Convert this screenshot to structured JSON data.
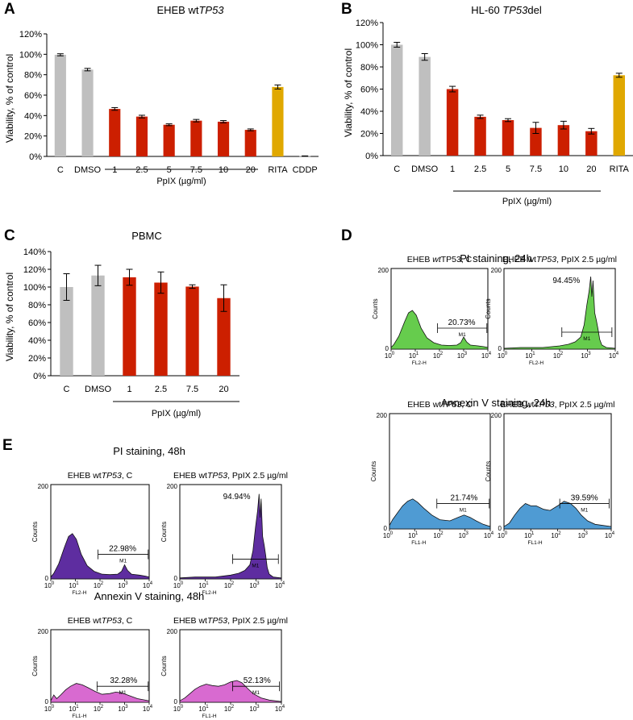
{
  "panel_letters": {
    "a": "A",
    "b": "B",
    "c": "C",
    "d": "D",
    "e": "E"
  },
  "chart_data": [
    {
      "id": "A",
      "type": "bar",
      "title_parts": [
        "EHEB wt",
        "TP53",
        ""
      ],
      "ylabel": "Viability, % of control",
      "ylim": [
        0,
        120
      ],
      "yticks": [
        0,
        20,
        40,
        60,
        80,
        100,
        120
      ],
      "ytick_suffix": "%",
      "categories": [
        "C",
        "DMSO",
        "1",
        "2.5",
        "5",
        "7.5",
        "10",
        "20",
        "RITA",
        "CDDP"
      ],
      "values": [
        99.5,
        85,
        46.5,
        39,
        31,
        35,
        34,
        26,
        68,
        0.3
      ],
      "errors": [
        1,
        1.2,
        1.3,
        1.3,
        0.9,
        1.2,
        1.1,
        0.9,
        2,
        0.2
      ],
      "groups": [
        "control",
        "control",
        "ppix",
        "ppix",
        "ppix",
        "ppix",
        "ppix",
        "ppix",
        "rita",
        "cddp"
      ],
      "group_label": "PpIX (µg/ml)"
    },
    {
      "id": "B",
      "type": "bar",
      "title_parts": [
        "HL-60 ",
        "TP53",
        "del"
      ],
      "ylabel": "Viability, % of control",
      "ylim": [
        0,
        120
      ],
      "yticks": [
        0,
        20,
        40,
        60,
        80,
        100,
        120
      ],
      "ytick_suffix": "%",
      "categories": [
        "C",
        "DMSO",
        "1",
        "2.5",
        "5",
        "7.5",
        "10",
        "20",
        "RITA"
      ],
      "values": [
        100,
        89,
        60,
        35,
        32,
        25,
        27.5,
        22,
        72.5
      ],
      "errors": [
        2.2,
        3,
        2.5,
        1.5,
        1.3,
        5,
        3.5,
        2.5,
        1.8
      ],
      "groups": [
        "control",
        "control",
        "ppix",
        "ppix",
        "ppix",
        "ppix",
        "ppix",
        "ppix",
        "rita"
      ],
      "group_label": "PpIX (µg/ml)"
    },
    {
      "id": "C",
      "type": "bar",
      "title_parts": [
        "PBMC",
        "",
        ""
      ],
      "ylabel": "Viability, % of control",
      "ylim": [
        0,
        140
      ],
      "yticks": [
        0,
        20,
        40,
        60,
        80,
        100,
        120,
        140
      ],
      "ytick_suffix": "%",
      "categories": [
        "C",
        "DMSO",
        "1",
        "2.5",
        "7.5",
        "20"
      ],
      "values": [
        100,
        113,
        111,
        105,
        100.5,
        87.5
      ],
      "errors": [
        15,
        11.5,
        9,
        12,
        2,
        15
      ],
      "groups": [
        "control",
        "control",
        "ppix",
        "ppix",
        "ppix",
        "ppix"
      ],
      "group_label": "PpIX (µg/ml)"
    }
  ],
  "colors": {
    "control": "#bfbfbf",
    "ppix": "#cc1f00",
    "rita": "#e0a800",
    "cddp": "#c2c2c2",
    "pi24": "#66cc4d",
    "annexin24": "#4f9bd3",
    "pi48": "#5e2da0",
    "annexin48": "#d86ad0"
  },
  "flow": {
    "ylabel": "Counts",
    "ymax_label": "200",
    "ymin_label": "0",
    "xtick_base": "10",
    "xtick_exps": [
      "0",
      "1",
      "2",
      "3",
      "4"
    ],
    "marker_label": "M1",
    "section_d": {
      "pi_title": "PI staining, 24h",
      "annexin_title": "Annexin V staining, 24h",
      "plots": [
        {
          "title_parts": [
            "EHEB ",
            "wt",
            "TP53, C"
          ],
          "italic": [
            false,
            true,
            false
          ],
          "percent": "20.73%",
          "xlabel": "FL2-H",
          "kind": "pi_control",
          "color": "pi24"
        },
        {
          "title_parts": [
            "EHEB wt",
            "TP53",
            ", PpIX 2.5 µg/ml"
          ],
          "italic": [
            false,
            true,
            false
          ],
          "percent": "94.45%",
          "xlabel": "FL2-H",
          "kind": "pi_treated",
          "color": "pi24"
        },
        {
          "title_parts": [
            "EHEB wt",
            "TP53",
            ", C"
          ],
          "italic": [
            false,
            true,
            false
          ],
          "percent": "21.74%",
          "xlabel": "FL1-H",
          "kind": "annexin_control",
          "color": "annexin24"
        },
        {
          "title_parts": [
            "EHEB wt",
            "TP53",
            ", PpIX 2.5 µg/ml"
          ],
          "italic": [
            false,
            true,
            false
          ],
          "percent": "39.59%",
          "xlabel": "FL1-H",
          "kind": "annexin_treated",
          "color": "annexin24"
        }
      ]
    },
    "section_e": {
      "pi_title": "PI staining, 48h",
      "annexin_title": "Annexin V staining, 48h",
      "plots": [
        {
          "title_parts": [
            "EHEB wt",
            "TP53",
            ", C"
          ],
          "italic": [
            false,
            true,
            false
          ],
          "percent": "22.98%",
          "xlabel": "FL2-H",
          "kind": "pi_control",
          "color": "pi48"
        },
        {
          "title_parts": [
            "EHEB wt",
            "TP53",
            ", PpIX 2.5 µg/ml"
          ],
          "italic": [
            false,
            true,
            false
          ],
          "percent": "94.94%",
          "xlabel": "FL2-H",
          "kind": "pi_treated",
          "color": "pi48"
        },
        {
          "title_parts": [
            "EHEB wt",
            "TP53",
            ", C"
          ],
          "italic": [
            false,
            true,
            false
          ],
          "percent": "32.28%",
          "xlabel": "FL1-H",
          "kind": "annexin_control48",
          "color": "annexin48"
        },
        {
          "title_parts": [
            "EHEB wt",
            "TP53",
            ", PpIX 2.5 µg/ml"
          ],
          "italic": [
            false,
            true,
            false
          ],
          "percent": "52.13%",
          "xlabel": "FL1-H",
          "kind": "annexin_treated48",
          "color": "annexin48"
        }
      ]
    }
  }
}
